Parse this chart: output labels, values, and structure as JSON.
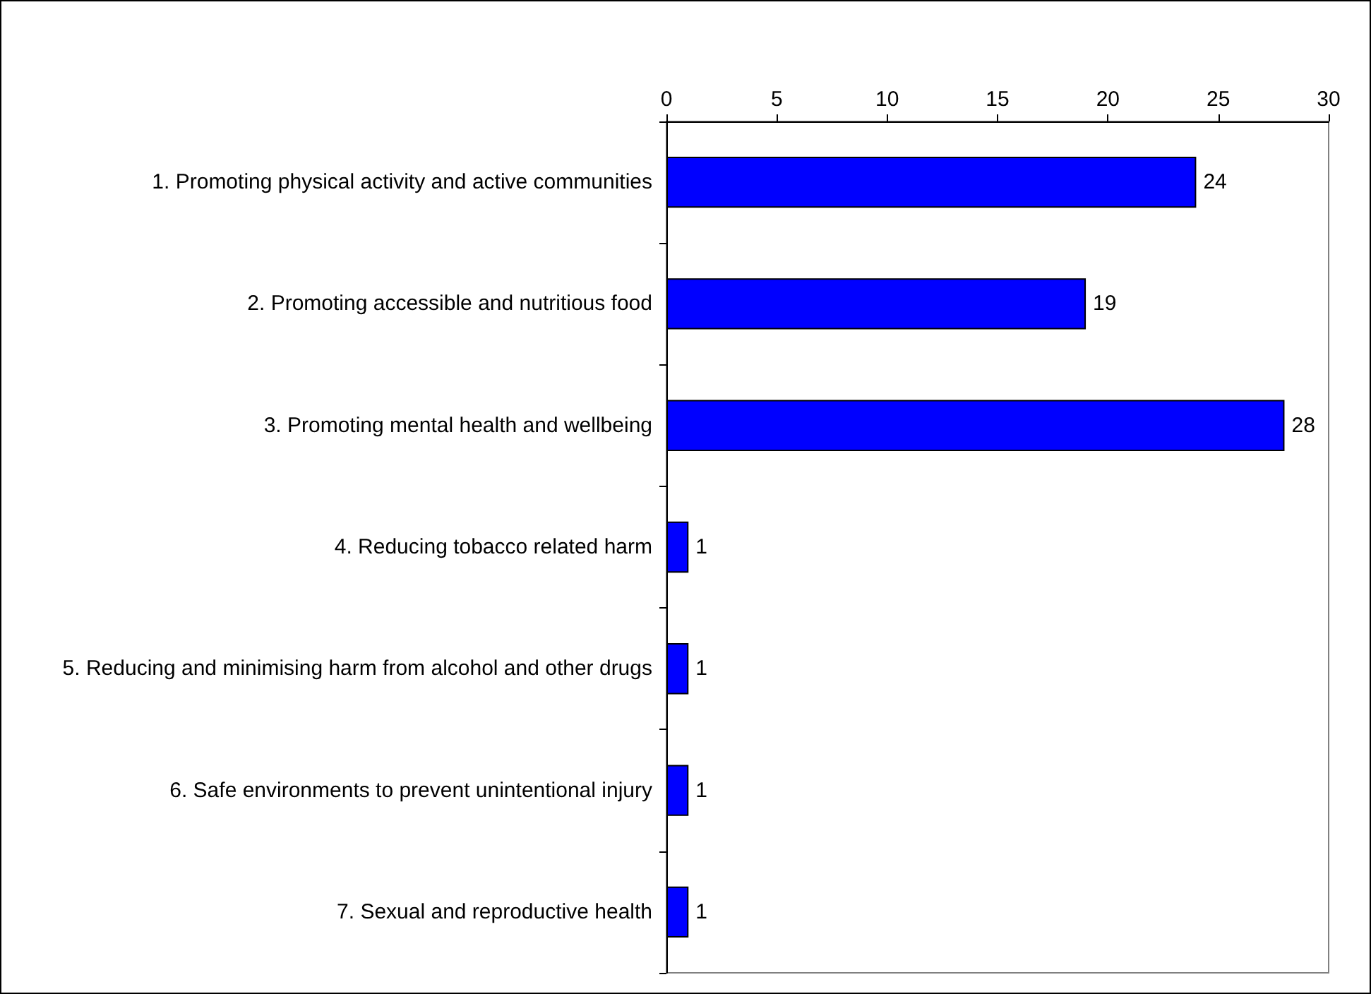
{
  "chart_data": {
    "type": "bar",
    "orientation": "horizontal",
    "categories": [
      "1. Promoting physical activity and active communities",
      "2. Promoting accessible and nutritious food",
      "3. Promoting mental health and wellbeing",
      "4. Reducing tobacco related harm",
      "5. Reducing and minimising harm from alcohol and other drugs",
      "6. Safe environments to prevent unintentional injury",
      "7. Sexual and reproductive health"
    ],
    "values": [
      24,
      19,
      28,
      1,
      1,
      1,
      1
    ],
    "color": "#0000ff",
    "xlim": [
      0,
      30
    ],
    "xticks": [
      0,
      5,
      10,
      15,
      20,
      25,
      30
    ],
    "grid": false,
    "data_labels": true
  }
}
